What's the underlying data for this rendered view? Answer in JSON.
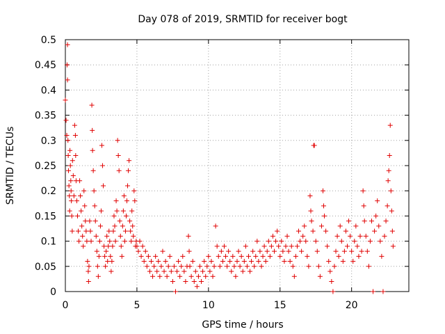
{
  "chart_data": {
    "type": "scatter",
    "title": "Day 078 of 2019, SRMTID for receiver bogt",
    "xlabel": "GPS time / hours",
    "ylabel": "SRMTID / TECUs",
    "xlim": [
      0,
      24
    ],
    "ylim": [
      0,
      0.5
    ],
    "x_ticks": [
      0,
      5,
      10,
      15,
      20
    ],
    "x_tick_labels": [
      "0",
      "5",
      "10",
      "15",
      "20"
    ],
    "y_ticks": [
      0,
      0.05,
      0.1,
      0.15,
      0.2,
      0.25,
      0.3,
      0.35,
      0.4,
      0.45,
      0.5
    ],
    "y_tick_labels": [
      "0",
      "0.05",
      "0.1",
      "0.15",
      "0.2",
      "0.25",
      "0.3",
      "0.35",
      "0.4",
      "0.45",
      "0.5"
    ],
    "grid": true,
    "marker": "+",
    "color": "#e00000",
    "series": [
      {
        "name": "SRMTID",
        "points": [
          [
            0.0,
            0.38
          ],
          [
            0.05,
            0.34
          ],
          [
            0.1,
            0.31
          ],
          [
            0.12,
            0.45
          ],
          [
            0.15,
            0.49
          ],
          [
            0.15,
            0.42
          ],
          [
            0.18,
            0.3
          ],
          [
            0.2,
            0.27
          ],
          [
            0.22,
            0.24
          ],
          [
            0.25,
            0.21
          ],
          [
            0.28,
            0.19
          ],
          [
            0.3,
            0.16
          ],
          [
            0.32,
            0.28
          ],
          [
            0.35,
            0.25
          ],
          [
            0.38,
            0.22
          ],
          [
            0.4,
            0.2
          ],
          [
            0.42,
            0.18
          ],
          [
            0.45,
            0.15
          ],
          [
            0.48,
            0.12
          ],
          [
            0.5,
            0.26
          ],
          [
            0.55,
            0.23
          ],
          [
            0.6,
            0.19
          ],
          [
            0.65,
            0.33
          ],
          [
            0.7,
            0.31
          ],
          [
            0.72,
            0.27
          ],
          [
            0.75,
            0.22
          ],
          [
            0.8,
            0.18
          ],
          [
            0.85,
            0.15
          ],
          [
            0.9,
            0.12
          ],
          [
            0.95,
            0.1
          ],
          [
            1.0,
            0.22
          ],
          [
            1.05,
            0.19
          ],
          [
            1.1,
            0.16
          ],
          [
            1.15,
            0.13
          ],
          [
            1.2,
            0.11
          ],
          [
            1.25,
            0.09
          ],
          [
            1.3,
            0.2
          ],
          [
            1.35,
            0.17
          ],
          [
            1.4,
            0.14
          ],
          [
            1.45,
            0.12
          ],
          [
            1.5,
            0.1
          ],
          [
            1.55,
            0.06
          ],
          [
            1.6,
            0.04
          ],
          [
            1.62,
            0.02
          ],
          [
            1.65,
            0.05
          ],
          [
            1.7,
            0.14
          ],
          [
            1.75,
            0.12
          ],
          [
            1.8,
            0.1
          ],
          [
            1.85,
            0.37
          ],
          [
            1.88,
            0.32
          ],
          [
            1.9,
            0.28
          ],
          [
            1.95,
            0.24
          ],
          [
            2.0,
            0.2
          ],
          [
            2.05,
            0.17
          ],
          [
            2.1,
            0.14
          ],
          [
            2.15,
            0.11
          ],
          [
            2.2,
            0.08
          ],
          [
            2.25,
            0.05
          ],
          [
            2.3,
            0.03
          ],
          [
            2.35,
            0.07
          ],
          [
            2.4,
            0.1
          ],
          [
            2.45,
            0.13
          ],
          [
            2.5,
            0.16
          ],
          [
            2.55,
            0.29
          ],
          [
            2.6,
            0.25
          ],
          [
            2.65,
            0.21
          ],
          [
            2.7,
            0.09
          ],
          [
            2.75,
            0.07
          ],
          [
            2.8,
            0.05
          ],
          [
            2.85,
            0.08
          ],
          [
            2.9,
            0.11
          ],
          [
            2.95,
            0.06
          ],
          [
            3.0,
            0.09
          ],
          [
            3.05,
            0.12
          ],
          [
            3.1,
            0.1
          ],
          [
            3.15,
            0.07
          ],
          [
            3.2,
            0.04
          ],
          [
            3.25,
            0.06
          ],
          [
            3.3,
            0.09
          ],
          [
            3.35,
            0.12
          ],
          [
            3.4,
            0.15
          ],
          [
            3.45,
            0.13
          ],
          [
            3.5,
            0.1
          ],
          [
            3.55,
            0.18
          ],
          [
            3.6,
            0.16
          ],
          [
            3.65,
            0.3
          ],
          [
            3.7,
            0.27
          ],
          [
            3.75,
            0.24
          ],
          [
            3.8,
            0.14
          ],
          [
            3.85,
            0.11
          ],
          [
            3.9,
            0.09
          ],
          [
            3.95,
            0.07
          ],
          [
            4.0,
            0.13
          ],
          [
            4.05,
            0.16
          ],
          [
            4.1,
            0.19
          ],
          [
            4.15,
            0.1
          ],
          [
            4.2,
            0.12
          ],
          [
            4.25,
            0.15
          ],
          [
            4.3,
            0.18
          ],
          [
            4.35,
            0.21
          ],
          [
            4.4,
            0.24
          ],
          [
            4.45,
            0.26
          ],
          [
            4.5,
            0.14
          ],
          [
            4.55,
            0.12
          ],
          [
            4.6,
            0.1
          ],
          [
            4.65,
            0.16
          ],
          [
            4.7,
            0.13
          ],
          [
            4.75,
            0.11
          ],
          [
            4.8,
            0.2
          ],
          [
            4.85,
            0.18
          ],
          [
            4.9,
            0.09
          ],
          [
            4.95,
            0.1
          ],
          [
            5.0,
            0.09
          ],
          [
            5.1,
            0.08
          ],
          [
            5.2,
            0.1
          ],
          [
            5.3,
            0.07
          ],
          [
            5.4,
            0.09
          ],
          [
            5.5,
            0.06
          ],
          [
            5.6,
            0.08
          ],
          [
            5.7,
            0.05
          ],
          [
            5.8,
            0.07
          ],
          [
            5.9,
            0.04
          ],
          [
            6.0,
            0.06
          ],
          [
            6.1,
            0.03
          ],
          [
            6.2,
            0.05
          ],
          [
            6.3,
            0.07
          ],
          [
            6.4,
            0.04
          ],
          [
            6.5,
            0.06
          ],
          [
            6.6,
            0.03
          ],
          [
            6.7,
            0.05
          ],
          [
            6.8,
            0.08
          ],
          [
            6.9,
            0.04
          ],
          [
            7.0,
            0.06
          ],
          [
            7.1,
            0.03
          ],
          [
            7.2,
            0.05
          ],
          [
            7.3,
            0.07
          ],
          [
            7.4,
            0.04
          ],
          [
            7.5,
            0.02
          ],
          [
            7.6,
            0.05
          ],
          [
            7.7,
            0.0
          ],
          [
            7.8,
            0.04
          ],
          [
            7.9,
            0.06
          ],
          [
            8.0,
            0.03
          ],
          [
            8.1,
            0.05
          ],
          [
            8.2,
            0.07
          ],
          [
            8.3,
            0.04
          ],
          [
            8.4,
            0.02
          ],
          [
            8.5,
            0.05
          ],
          [
            8.6,
            0.11
          ],
          [
            8.65,
            0.08
          ],
          [
            8.7,
            0.05
          ],
          [
            8.8,
            0.03
          ],
          [
            8.9,
            0.06
          ],
          [
            9.0,
            0.02
          ],
          [
            9.1,
            0.04
          ],
          [
            9.2,
            0.01
          ],
          [
            9.3,
            0.03
          ],
          [
            9.4,
            0.05
          ],
          [
            9.5,
            0.02
          ],
          [
            9.6,
            0.04
          ],
          [
            9.7,
            0.06
          ],
          [
            9.8,
            0.03
          ],
          [
            9.9,
            0.05
          ],
          [
            10.0,
            0.07
          ],
          [
            10.1,
            0.04
          ],
          [
            10.2,
            0.06
          ],
          [
            10.3,
            0.03
          ],
          [
            10.4,
            0.05
          ],
          [
            10.5,
            0.13
          ],
          [
            10.6,
            0.09
          ],
          [
            10.7,
            0.07
          ],
          [
            10.8,
            0.05
          ],
          [
            10.9,
            0.08
          ],
          [
            11.0,
            0.06
          ],
          [
            11.1,
            0.09
          ],
          [
            11.2,
            0.07
          ],
          [
            11.3,
            0.05
          ],
          [
            11.4,
            0.08
          ],
          [
            11.5,
            0.06
          ],
          [
            11.6,
            0.04
          ],
          [
            11.7,
            0.07
          ],
          [
            11.8,
            0.05
          ],
          [
            11.9,
            0.03
          ],
          [
            12.0,
            0.06
          ],
          [
            12.1,
            0.08
          ],
          [
            12.2,
            0.05
          ],
          [
            12.3,
            0.07
          ],
          [
            12.4,
            0.04
          ],
          [
            12.5,
            0.06
          ],
          [
            12.6,
            0.09
          ],
          [
            12.7,
            0.05
          ],
          [
            12.8,
            0.07
          ],
          [
            12.9,
            0.04
          ],
          [
            13.0,
            0.06
          ],
          [
            13.1,
            0.08
          ],
          [
            13.2,
            0.05
          ],
          [
            13.3,
            0.07
          ],
          [
            13.4,
            0.1
          ],
          [
            13.5,
            0.06
          ],
          [
            13.6,
            0.08
          ],
          [
            13.7,
            0.05
          ],
          [
            13.8,
            0.07
          ],
          [
            13.9,
            0.09
          ],
          [
            14.0,
            0.06
          ],
          [
            14.1,
            0.08
          ],
          [
            14.2,
            0.1
          ],
          [
            14.3,
            0.07
          ],
          [
            14.4,
            0.09
          ],
          [
            14.5,
            0.11
          ],
          [
            14.6,
            0.08
          ],
          [
            14.7,
            0.1
          ],
          [
            14.8,
            0.12
          ],
          [
            14.9,
            0.09
          ],
          [
            15.0,
            0.07
          ],
          [
            15.1,
            0.1
          ],
          [
            15.2,
            0.08
          ],
          [
            15.3,
            0.06
          ],
          [
            15.4,
            0.09
          ],
          [
            15.5,
            0.11
          ],
          [
            15.6,
            0.08
          ],
          [
            15.7,
            0.06
          ],
          [
            15.8,
            0.09
          ],
          [
            15.9,
            0.05
          ],
          [
            16.0,
            0.03
          ],
          [
            16.1,
            0.07
          ],
          [
            16.2,
            0.09
          ],
          [
            16.3,
            0.12
          ],
          [
            16.4,
            0.1
          ],
          [
            16.5,
            0.08
          ],
          [
            16.6,
            0.11
          ],
          [
            16.7,
            0.13
          ],
          [
            16.8,
            0.1
          ],
          [
            16.9,
            0.07
          ],
          [
            17.0,
            0.05
          ],
          [
            17.1,
            0.19
          ],
          [
            17.15,
            0.16
          ],
          [
            17.2,
            0.14
          ],
          [
            17.3,
            0.12
          ],
          [
            17.35,
            0.29
          ],
          [
            17.4,
            0.29
          ],
          [
            17.5,
            0.1
          ],
          [
            17.6,
            0.08
          ],
          [
            17.7,
            0.05
          ],
          [
            17.8,
            0.03
          ],
          [
            17.9,
            0.13
          ],
          [
            18.0,
            0.2
          ],
          [
            18.05,
            0.17
          ],
          [
            18.1,
            0.15
          ],
          [
            18.2,
            0.12
          ],
          [
            18.3,
            0.09
          ],
          [
            18.4,
            0.06
          ],
          [
            18.5,
            0.04
          ],
          [
            18.6,
            0.02
          ],
          [
            18.7,
            0.0
          ],
          [
            18.8,
            0.05
          ],
          [
            18.9,
            0.08
          ],
          [
            19.0,
            0.11
          ],
          [
            19.1,
            0.07
          ],
          [
            19.2,
            0.13
          ],
          [
            19.3,
            0.1
          ],
          [
            19.4,
            0.06
          ],
          [
            19.5,
            0.08
          ],
          [
            19.6,
            0.12
          ],
          [
            19.7,
            0.09
          ],
          [
            19.8,
            0.14
          ],
          [
            19.9,
            0.11
          ],
          [
            20.0,
            0.08
          ],
          [
            20.1,
            0.06
          ],
          [
            20.2,
            0.1
          ],
          [
            20.3,
            0.13
          ],
          [
            20.4,
            0.09
          ],
          [
            20.5,
            0.07
          ],
          [
            20.6,
            0.11
          ],
          [
            20.7,
            0.08
          ],
          [
            20.8,
            0.2
          ],
          [
            20.85,
            0.17
          ],
          [
            20.9,
            0.14
          ],
          [
            21.0,
            0.11
          ],
          [
            21.1,
            0.08
          ],
          [
            21.2,
            0.05
          ],
          [
            21.3,
            0.1
          ],
          [
            21.4,
            0.14
          ],
          [
            21.5,
            0.0
          ],
          [
            21.6,
            0.12
          ],
          [
            21.7,
            0.15
          ],
          [
            21.8,
            0.18
          ],
          [
            21.9,
            0.13
          ],
          [
            22.0,
            0.1
          ],
          [
            22.1,
            0.07
          ],
          [
            22.2,
            0.0
          ],
          [
            22.3,
            0.11
          ],
          [
            22.4,
            0.14
          ],
          [
            22.5,
            0.17
          ],
          [
            22.55,
            0.22
          ],
          [
            22.6,
            0.24
          ],
          [
            22.65,
            0.27
          ],
          [
            22.7,
            0.33
          ],
          [
            22.75,
            0.2
          ],
          [
            22.8,
            0.16
          ],
          [
            22.85,
            0.12
          ],
          [
            22.9,
            0.09
          ]
        ]
      }
    ]
  }
}
